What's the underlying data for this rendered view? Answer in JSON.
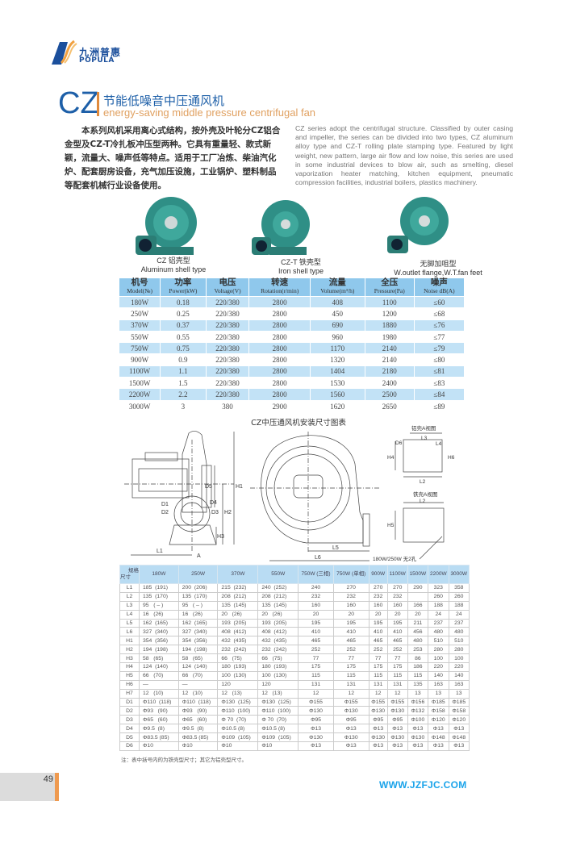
{
  "logo": {
    "cn": "九洲普惠",
    "en": "POPULA"
  },
  "header": {
    "code": "CZ",
    "title_cn": "节能低噪音中压通风机",
    "title_en": "energy-saving middle pressure centrifugal fan"
  },
  "intro": {
    "cn": "本系列风机采用离心式结构，按外壳及叶轮分CZ铝合金型及CZ-T冷扎板冲压型两种。它具有重量轻、款式新颖，流量大、噪声低等特点。适用于工厂冶炼、柴油汽化炉、配套厨房设备，充气加压设施，工业锅炉、塑料制品等配套机械行业设备使用。",
    "en": "CZ series adopt the centrifugal structure. Classified by outer casing and impeller, the series can be divided into two types, CZ aluminum alloy type and CZ-T rolling plate stamping type. Featured by light weight, new pattern, large air flow and low noise, this series are used in some industrial devices to blow air, such as smelting, diesel vaporization heater matching, kitchen equipment, pneumatic compression facilities, industrial boilers, plastics machinery."
  },
  "products": [
    {
      "cn": "CZ 铝壳型",
      "en": "Aluminum shell type"
    },
    {
      "cn": "CZ-T 铁壳型",
      "en": "Iron shell type"
    },
    {
      "cn": "无脚加咀型",
      "en": "W.outlet flange,W.T.fan feet"
    }
  ],
  "spec_table": {
    "headers": [
      {
        "cn": "机号",
        "en": "Model(№)"
      },
      {
        "cn": "功率",
        "en": "Power(kW)"
      },
      {
        "cn": "电压",
        "en": "Voltage(V)"
      },
      {
        "cn": "转速",
        "en": "Rotation(r/min)"
      },
      {
        "cn": "流量",
        "en": "Volume(m³/h)"
      },
      {
        "cn": "全压",
        "en": "Pressure(Pa)"
      },
      {
        "cn": "噪声",
        "en": "Noise dB(A)"
      }
    ],
    "rows": [
      [
        "180W",
        "0.18",
        "220/380",
        "2800",
        "408",
        "1100",
        "≤60"
      ],
      [
        "250W",
        "0.25",
        "220/380",
        "2800",
        "450",
        "1200",
        "≤68"
      ],
      [
        "370W",
        "0.37",
        "220/380",
        "2800",
        "690",
        "1880",
        "≤76"
      ],
      [
        "550W",
        "0.55",
        "220/380",
        "2800",
        "960",
        "1980",
        "≤77"
      ],
      [
        "750W",
        "0.75",
        "220/380",
        "2800",
        "1170",
        "2140",
        "≤79"
      ],
      [
        "900W",
        "0.9",
        "220/380",
        "2800",
        "1320",
        "2140",
        "≤80"
      ],
      [
        "1100W",
        "1.1",
        "220/380",
        "2800",
        "1404",
        "2180",
        "≤81"
      ],
      [
        "1500W",
        "1.5",
        "220/380",
        "2800",
        "1530",
        "2400",
        "≤83"
      ],
      [
        "2200W",
        "2.2",
        "220/380",
        "2800",
        "1560",
        "2500",
        "≤84"
      ],
      [
        "3000W",
        "3",
        "380",
        "2900",
        "1620",
        "2650",
        "≤89"
      ]
    ]
  },
  "diagram": {
    "title": "CZ中压通风机安装尺寸图表",
    "al_view": "铝壳A视图",
    "fe_view": "铁壳A视图",
    "hole_note": "180W/250W 无2孔",
    "labels": {
      "L1": "L1",
      "L2": "L2",
      "L3": "L3",
      "L4": "L4",
      "L5": "L5",
      "L6": "L6",
      "H1": "H1",
      "H2": "H2",
      "H3": "H3",
      "H4": "H4",
      "H5": "H5",
      "H6": "H6",
      "D1": "D1",
      "D2": "D2",
      "D3": "D3",
      "D4": "D4",
      "D5": "D5",
      "D6": "D6",
      "A": "A"
    }
  },
  "dim_table": {
    "corner_top": "规格",
    "corner_bottom": "尺寸",
    "headers": [
      "180W",
      "250W",
      "370W",
      "550W",
      "750W (三相)",
      "750W (单相)",
      "900W",
      "1100W",
      "1500W",
      "2200W",
      "3000W"
    ],
    "rows": [
      [
        "L1",
        "185  (191)",
        "200  (206)",
        "215  (232)",
        "240  (252)",
        "240",
        "270",
        "270",
        "270",
        "290",
        "323",
        "358"
      ],
      [
        "L2",
        "135  (170)",
        "135  (170)",
        "208  (212)",
        "208  (212)",
        "232",
        "232",
        "232",
        "232",
        "",
        "260",
        "260"
      ],
      [
        "L3",
        "95   ( – )",
        "95   ( – )",
        "135  (145)",
        "135  (145)",
        "160",
        "160",
        "160",
        "160",
        "166",
        "188",
        "188"
      ],
      [
        "L4",
        "16   (26)",
        "16   (26)",
        "20   (26)",
        "20   (26)",
        "20",
        "20",
        "20",
        "20",
        "20",
        "24",
        "24"
      ],
      [
        "L5",
        "162  (165)",
        "162  (165)",
        "193  (205)",
        "193  (205)",
        "195",
        "195",
        "195",
        "195",
        "211",
        "237",
        "237"
      ],
      [
        "L6",
        "327  (340)",
        "327  (340)",
        "408  (412)",
        "408  (412)",
        "410",
        "410",
        "410",
        "410",
        "456",
        "480",
        "480"
      ],
      [
        "H1",
        "354  (356)",
        "354  (356)",
        "432  (435)",
        "432  (435)",
        "465",
        "465",
        "465",
        "465",
        "480",
        "510",
        "510"
      ],
      [
        "H2",
        "194  (198)",
        "194  (198)",
        "232  (242)",
        "232  (242)",
        "252",
        "252",
        "252",
        "252",
        "253",
        "280",
        "280"
      ],
      [
        "H3",
        "58   (65)",
        "58   (65)",
        "66   (75)",
        "66   (75)",
        "77",
        "77",
        "77",
        "77",
        "86",
        "100",
        "100"
      ],
      [
        "H4",
        "124  (140)",
        "124  (140)",
        "180  (193)",
        "180  (193)",
        "175",
        "175",
        "175",
        "175",
        "186",
        "220",
        "220"
      ],
      [
        "H5",
        "66   (70)",
        "66   (70)",
        "100  (130)",
        "100  (130)",
        "115",
        "115",
        "115",
        "115",
        "115",
        "140",
        "140"
      ],
      [
        "H6",
        "—",
        "—",
        "120",
        "120",
        "131",
        "131",
        "131",
        "131",
        "135",
        "163",
        "163"
      ],
      [
        "H7",
        "12   (10)",
        "12   (10)",
        "12   (13)",
        "12   (13)",
        "12",
        "12",
        "12",
        "12",
        "13",
        "13",
        "13"
      ],
      [
        "D1",
        "Φ110  (118)",
        "Φ110  (118)",
        "Φ130  (125)",
        "Φ130  (125)",
        "Φ155",
        "Φ155",
        "Φ155",
        "Φ155",
        "Φ156",
        "Φ185",
        "Φ185"
      ],
      [
        "D2",
        "Φ93   (90)",
        "Φ93   (90)",
        "Φ110  (100)",
        "Φ110  (100)",
        "Φ130",
        "Φ130",
        "Φ130",
        "Φ130",
        "Φ132",
        "Φ158",
        "Φ158"
      ],
      [
        "D3",
        "Φ65   (60)",
        "Φ65   (60)",
        "Φ 70  (70)",
        "Φ 70  (70)",
        "Φ95",
        "Φ95",
        "Φ95",
        "Φ95",
        "Φ100",
        "Φ120",
        "Φ120"
      ],
      [
        "D4",
        "Φ9.5  (8)",
        "Φ9.5  (8)",
        "Φ10.5 (8)",
        "Φ10.5 (8)",
        "Φ13",
        "Φ13",
        "Φ13",
        "Φ13",
        "Φ13",
        "Φ13",
        "Φ13"
      ],
      [
        "D5",
        "Φ83.5 (85)",
        "Φ83.5 (85)",
        "Φ109  (105)",
        "Φ109  (105)",
        "Φ130",
        "Φ130",
        "Φ130",
        "Φ130",
        "Φ130",
        "Φ148",
        "Φ148"
      ],
      [
        "D6",
        "Φ10",
        "Φ10",
        "Φ10",
        "Φ10",
        "Φ13",
        "Φ13",
        "Φ13",
        "Φ13",
        "Φ13",
        "Φ13",
        "Φ13"
      ]
    ]
  },
  "note": "注：表中括号内的为铁壳型尺寸；其它为铝壳型尺寸。",
  "footer": {
    "page": "49",
    "url": "WWW.JZFJC.COM"
  },
  "colors": {
    "brand_blue": "#1d5fa8",
    "accent_orange": "#ef9a4f",
    "table_blue": "#8fc8ec",
    "url_blue": "#1aa3ea",
    "fan_teal": "#2f8f86"
  }
}
